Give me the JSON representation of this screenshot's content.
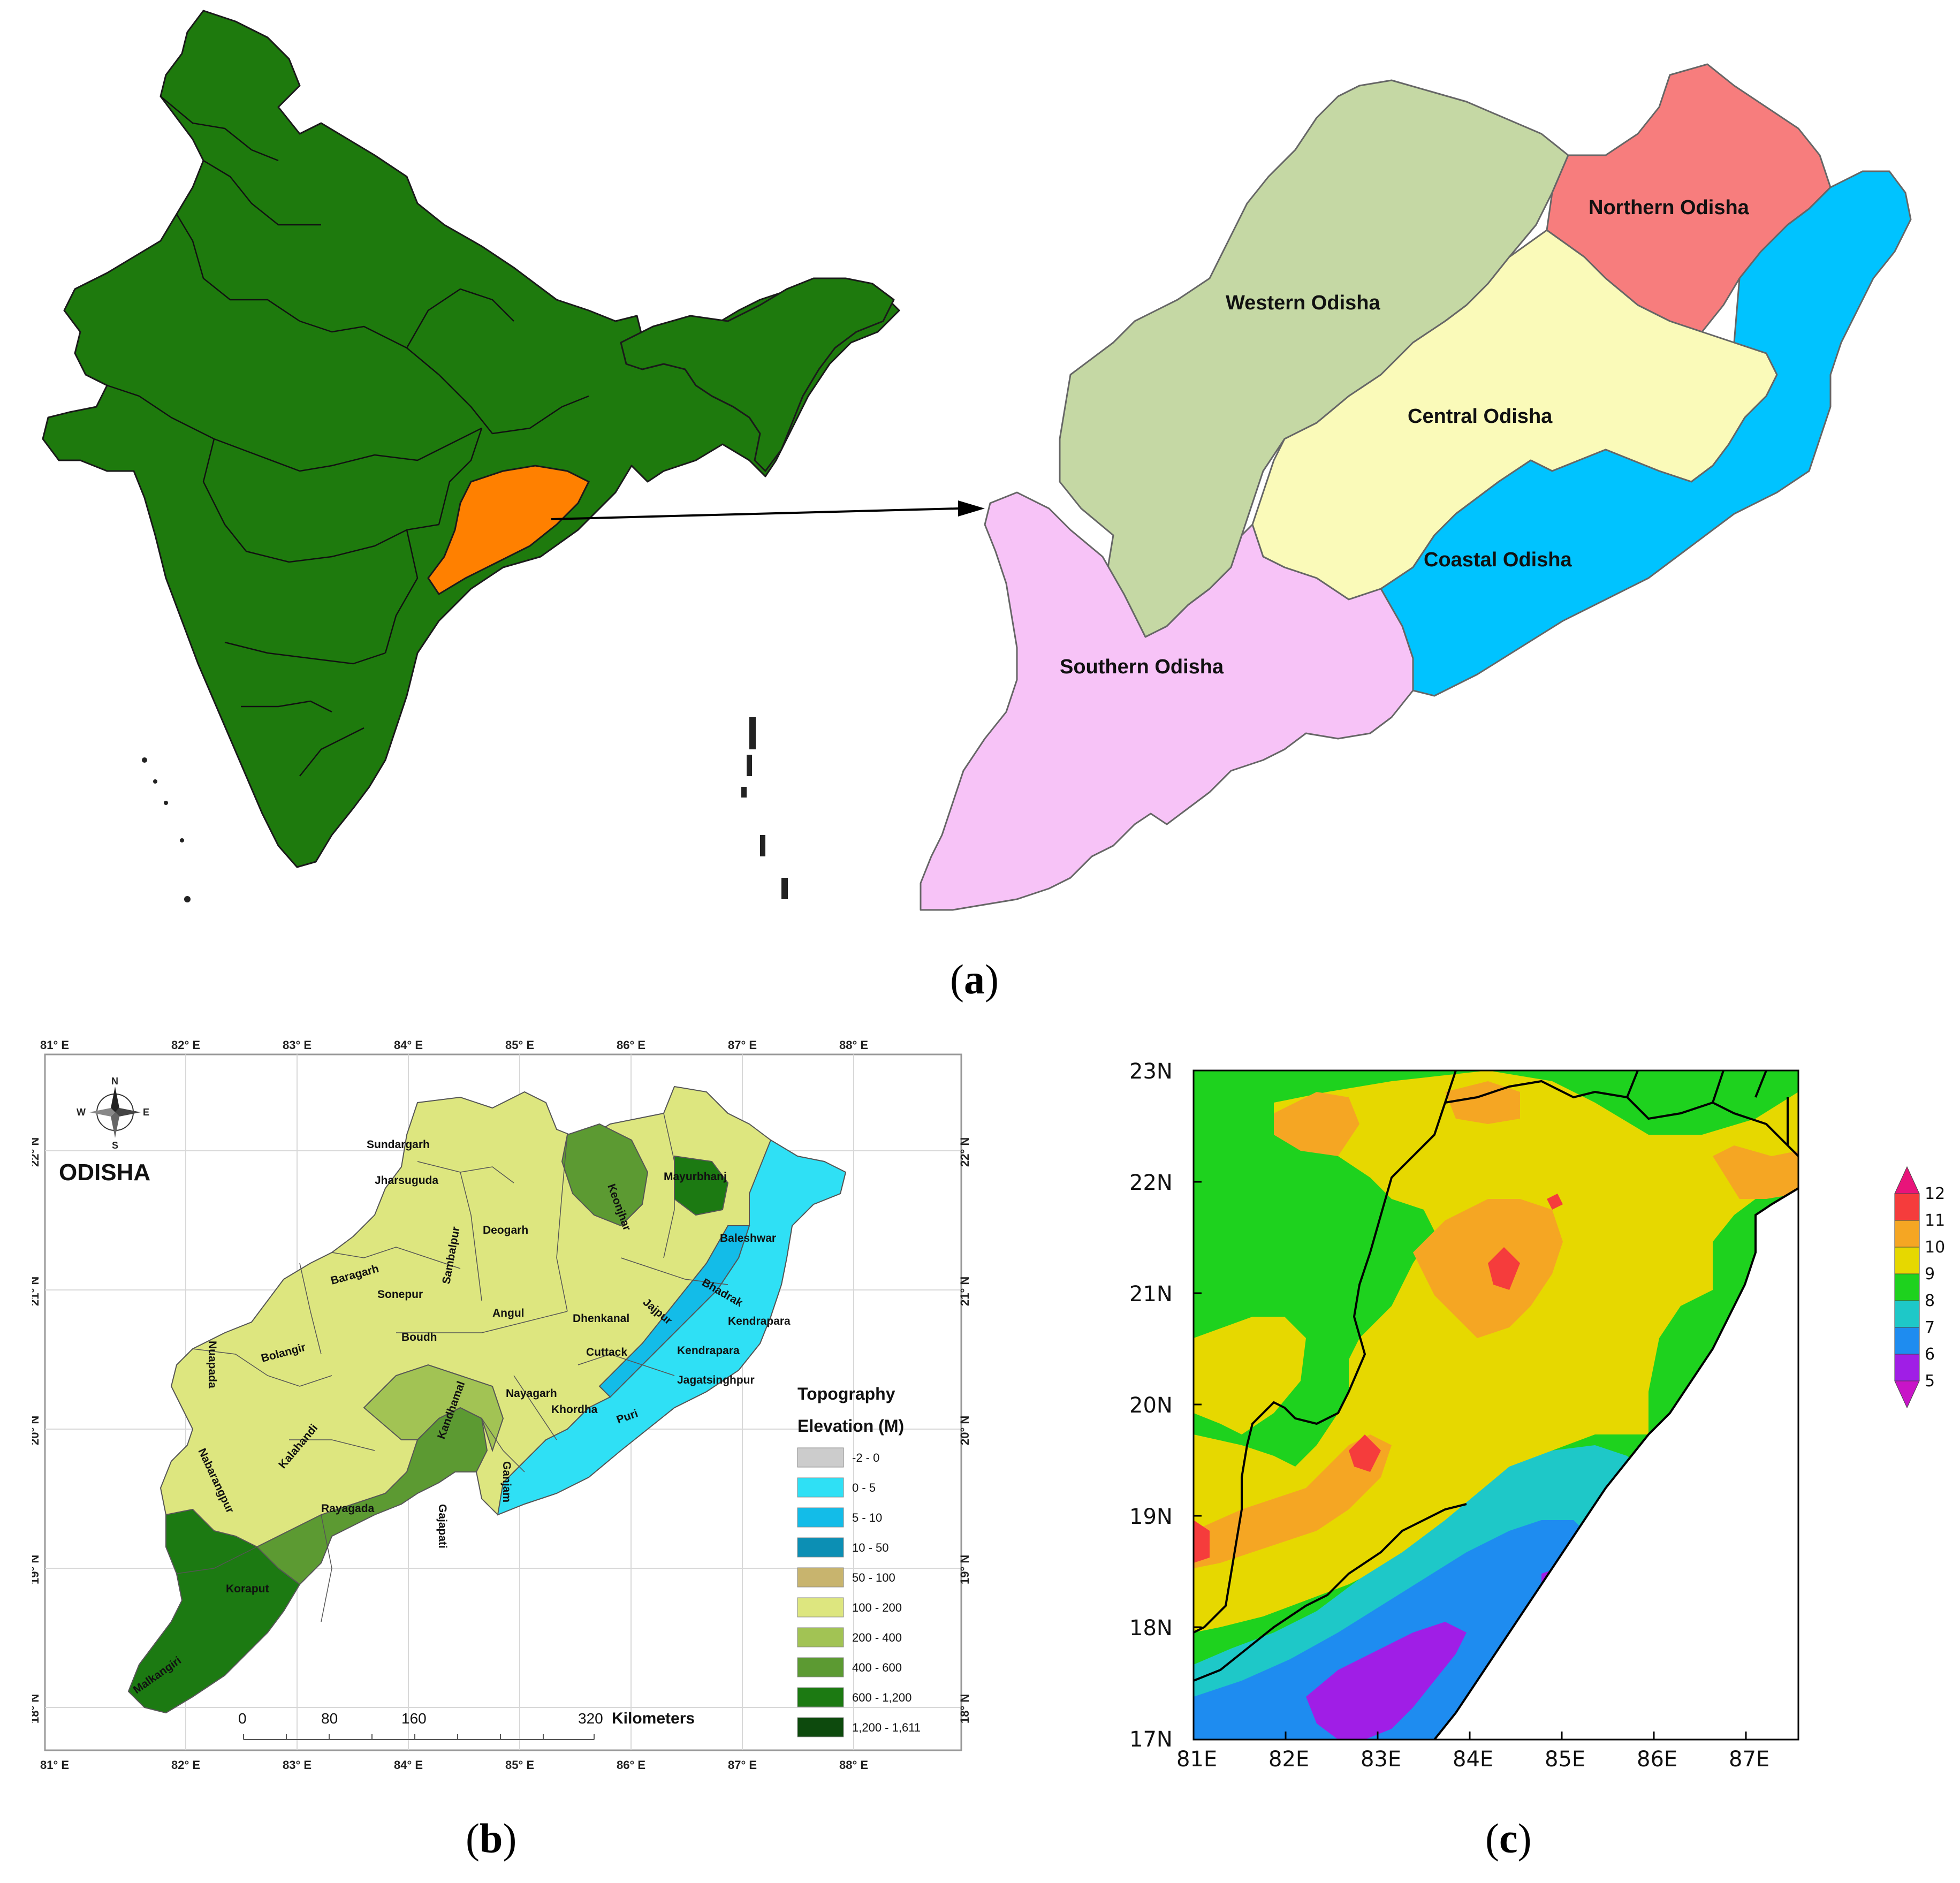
{
  "panel_a": {
    "caption": "a",
    "regions": {
      "western": "Western Odisha",
      "northern": "Northern Odisha",
      "central": "Central Odisha",
      "coastal": "Coastal Odisha",
      "southern": "Southern Odisha"
    },
    "colors": {
      "india": "#1e7a0d",
      "odisha_highlight": "#ff8000",
      "western": "#c5d8a4",
      "northern": "#f77d7d",
      "central": "#fafab9",
      "coastal": "#00c3ff",
      "southern": "#f7c3f7"
    }
  },
  "panel_b": {
    "caption": "b",
    "title": "ODISHA",
    "top_lon_labels": [
      "81° E",
      "82° E",
      "83° E",
      "84° E",
      "85° E",
      "86° E",
      "87° E",
      "88° E"
    ],
    "bottom_lon_labels": [
      "81° E",
      "82° E",
      "83° E",
      "84° E",
      "85° E",
      "86° E",
      "87° E",
      "88° E"
    ],
    "lat_labels": [
      "22° N",
      "21° N",
      "20° N",
      "19° N",
      "18° N"
    ],
    "compass": {
      "n": "N",
      "s": "S",
      "e": "E",
      "w": "W"
    },
    "districts": [
      "Sundargarh",
      "Jharsuguda",
      "Mayurbhanj",
      "Keonjhar",
      "Deogarh",
      "Sambalpur",
      "Baleshwar",
      "Baragarh",
      "Sonepur",
      "Bhadrak",
      "Angul",
      "Dhenkanal",
      "Jajpur",
      "Kendrapara",
      "Kendrapara",
      "Nuapada",
      "Bolangir",
      "Boudh",
      "Cuttack",
      "Jagatsinghpur",
      "Kandhamal",
      "Nayagarh",
      "Khordha",
      "Puri",
      "Kalahandi",
      "Ganjam",
      "Nabarangpur",
      "Rayagada",
      "Gajapati",
      "Koraput",
      "Malkangiri"
    ],
    "legend": {
      "title1": "Topography",
      "title2": "Elevation (M)",
      "items": [
        {
          "label": "-2 - 0",
          "color": "#cccccc"
        },
        {
          "label": "0 - 5",
          "color": "#2fe0f5"
        },
        {
          "label": "5 - 10",
          "color": "#13bce8"
        },
        {
          "label": "10 - 50",
          "color": "#0c8fb4"
        },
        {
          "label": "50 - 100",
          "color": "#c8b46e"
        },
        {
          "label": "100 - 200",
          "color": "#dde67f"
        },
        {
          "label": "200 - 400",
          "color": "#a2c354"
        },
        {
          "label": "400 - 600",
          "color": "#5c9a32"
        },
        {
          "label": "600 - 1,200",
          "color": "#1c7a12"
        },
        {
          "label": "1,200 - 1,611",
          "color": "#0d4a0d"
        }
      ]
    },
    "scale": {
      "ticks": [
        "0",
        "80",
        "160",
        "320"
      ],
      "unit": "Kilometers"
    }
  },
  "panel_c": {
    "caption": "c",
    "y_labels": [
      "23N",
      "22N",
      "21N",
      "20N",
      "19N",
      "18N",
      "17N"
    ],
    "x_labels": [
      "81E",
      "82E",
      "83E",
      "84E",
      "85E",
      "86E",
      "87E"
    ],
    "colorbar": {
      "labels": [
        "12",
        "11",
        "10",
        "9",
        "8",
        "7",
        "6",
        "5"
      ],
      "colors": [
        "#e8147a",
        "#f53c3c",
        "#f5a623",
        "#e6d800",
        "#1ed21e",
        "#1ec8c8",
        "#1e8cf0",
        "#a01ee6",
        "#c814c8"
      ]
    }
  }
}
